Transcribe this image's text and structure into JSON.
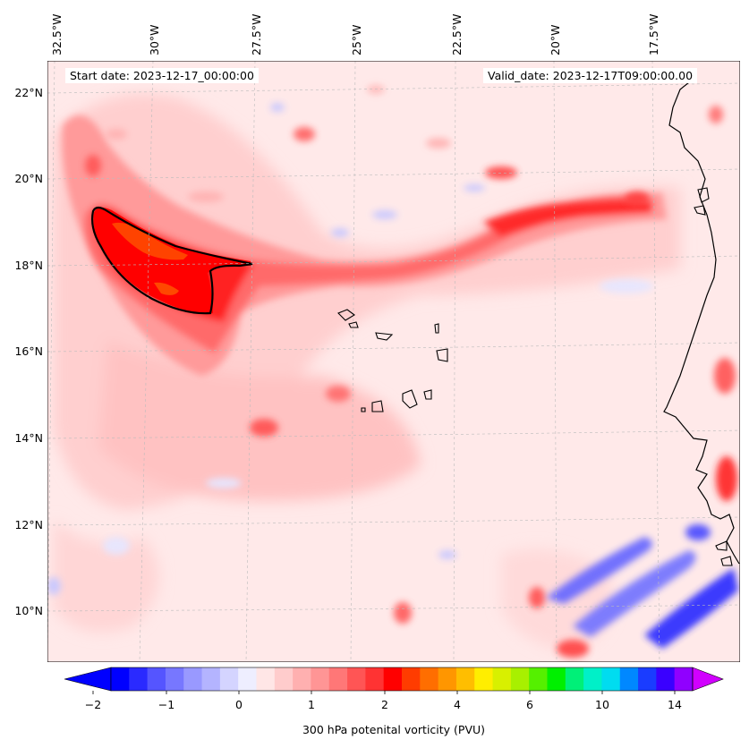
{
  "header": {
    "start_date": "Start date: 2023-12-17_00:00:00",
    "valid_date": "Valid_date: 2023-12-17T09:00:00.00"
  },
  "axes": {
    "longitude_labels": [
      "32.5°W",
      "30°W",
      "27.5°W",
      "25°W",
      "22.5°W",
      "20°W",
      "17.5°W"
    ],
    "latitude_labels": [
      "22°N",
      "20°N",
      "18°N",
      "16°N",
      "14°N",
      "12°N",
      "10°N"
    ]
  },
  "colorbar": {
    "label": "300 hPa potenital vorticity (PVU)",
    "tick_labels": [
      "−2",
      "−1",
      "0",
      "1",
      "2",
      "4",
      "6",
      "10",
      "14"
    ],
    "colors": [
      "#0000ff",
      "#2a2aff",
      "#5555ff",
      "#7777ff",
      "#9999ff",
      "#b4b4ff",
      "#d4d4ff",
      "#eeeeff",
      "#ffe6e6",
      "#ffcccc",
      "#ffb0b0",
      "#ff9595",
      "#ff7777",
      "#ff5555",
      "#ff3333",
      "#ff0000",
      "#ff3c00",
      "#ff6e00",
      "#ff9600",
      "#ffbe00",
      "#ffee00",
      "#d8f000",
      "#a8f000",
      "#55f000",
      "#00f000",
      "#00f078",
      "#00f0c8",
      "#00dcf0",
      "#0088ff",
      "#1a3cff",
      "#3a00ff",
      "#9000ff"
    ],
    "arrow_left_color": "#0000ff",
    "arrow_right_color": "#d100ff"
  },
  "map": {
    "background_color": "#ffe9e9",
    "coastline_color": "#000000",
    "contour_color": "#000000"
  }
}
